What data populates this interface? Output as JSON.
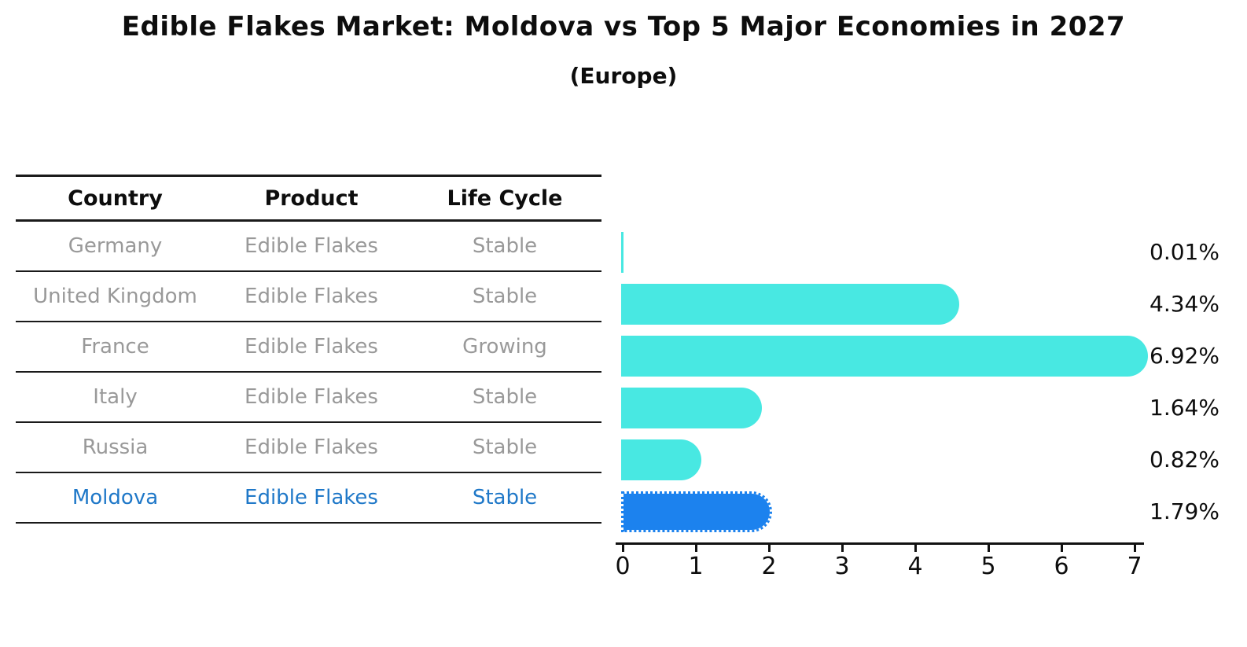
{
  "chart_data": {
    "type": "bar",
    "orientation": "horizontal",
    "title": "Edible Flakes Market: Moldova vs Top 5 Major Economies in 2027",
    "subtitle": "(Europe)",
    "categories": [
      "Germany",
      "United Kingdom",
      "France",
      "Italy",
      "Russia",
      "Moldova"
    ],
    "values": [
      0.01,
      4.34,
      6.92,
      1.64,
      0.82,
      1.79
    ],
    "value_labels": [
      "0.01%",
      "4.34%",
      "6.92%",
      "1.64%",
      "0.82%",
      "1.79%"
    ],
    "x_ticks": [
      0,
      1,
      2,
      3,
      4,
      5,
      6,
      7
    ],
    "xlim": [
      0,
      7.2
    ],
    "grid": false,
    "legend": false,
    "highlight_index": 5,
    "bar_color": "#48E8E2",
    "highlight_bar_color": "#1C82EE",
    "highlight_text_color": "#1F78C8"
  },
  "table": {
    "headers": [
      "Country",
      "Product",
      "Life Cycle"
    ],
    "rows": [
      {
        "country": "Germany",
        "product": "Edible Flakes",
        "life_cycle": "Stable",
        "highlight": false
      },
      {
        "country": "United Kingdom",
        "product": "Edible Flakes",
        "life_cycle": "Stable",
        "highlight": false
      },
      {
        "country": "France",
        "product": "Edible Flakes",
        "life_cycle": "Growing",
        "highlight": false
      },
      {
        "country": "Italy",
        "product": "Edible Flakes",
        "life_cycle": "Stable",
        "highlight": false
      },
      {
        "country": "Russia",
        "product": "Edible Flakes",
        "life_cycle": "Stable",
        "highlight": false
      },
      {
        "country": "Moldova",
        "product": "Edible Flakes",
        "life_cycle": "Stable",
        "highlight": true
      }
    ]
  }
}
